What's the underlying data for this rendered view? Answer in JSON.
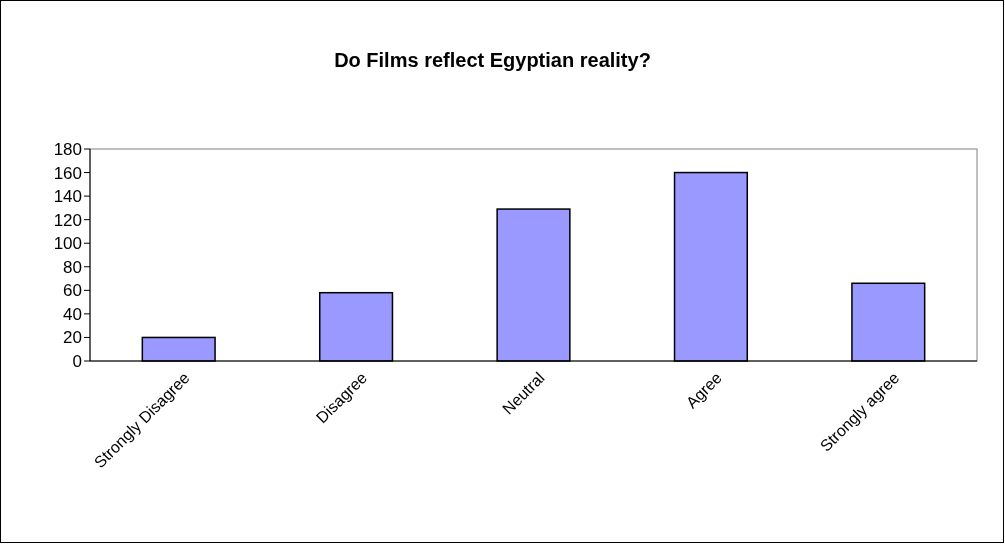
{
  "chart_data": {
    "type": "bar",
    "title": "Do Films reflect Egyptian reality?",
    "categories": [
      "Strongly Disagree",
      "Disagree",
      "Neutral",
      "Agree",
      "Strongly agree"
    ],
    "values": [
      20,
      58,
      129,
      160,
      66
    ],
    "color": "#9999ff",
    "ylim": [
      0,
      180
    ],
    "yticks": [
      0,
      20,
      40,
      60,
      80,
      100,
      120,
      140,
      160,
      180
    ],
    "grid": false
  }
}
